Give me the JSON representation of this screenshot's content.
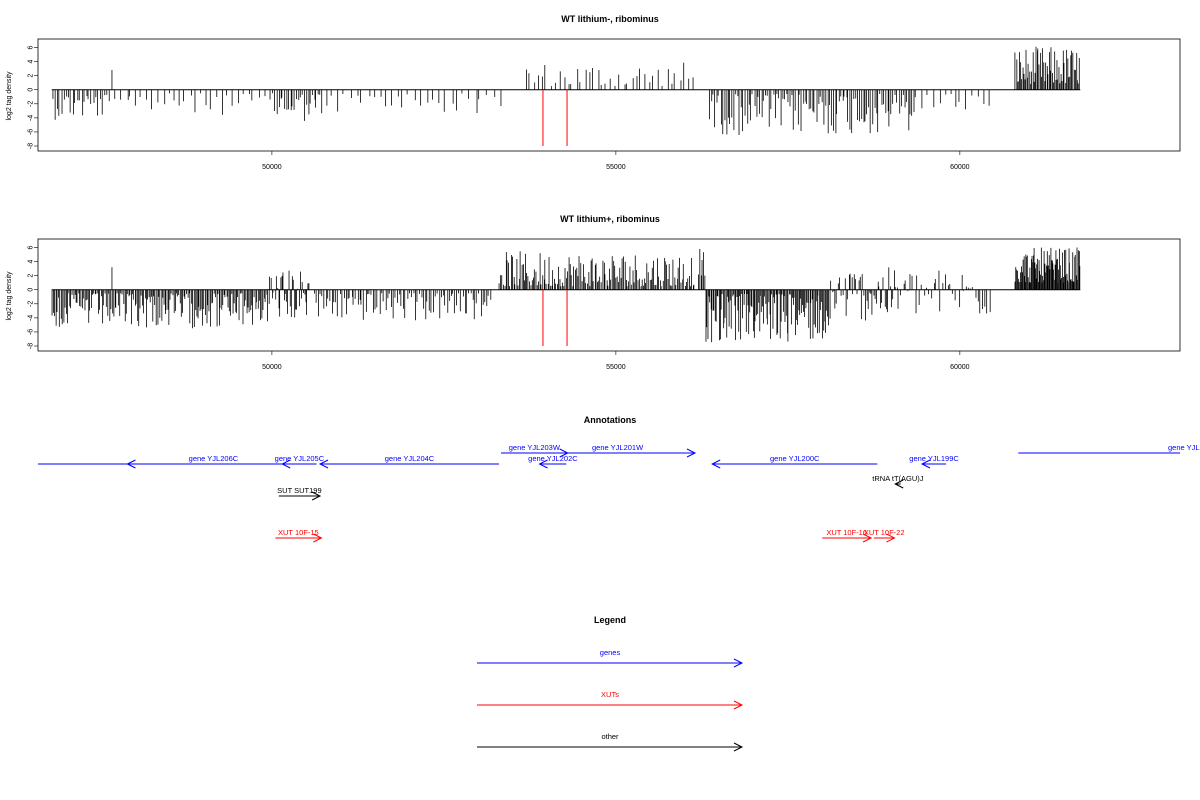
{
  "chart_data": [
    {
      "type": "bar",
      "title": "WT lithium-, ribominus",
      "ylabel": "log2 tag density",
      "xlabel": "",
      "xlim": [
        46600,
        63200
      ],
      "ylim": [
        -8,
        6.5
      ],
      "x_ticks": [
        "50000",
        "55000",
        "60000"
      ],
      "y_ticks": [
        "6",
        "4",
        "2",
        "0",
        "-2",
        "-4",
        "-6",
        "-8"
      ],
      "series_color": "#000000",
      "highlight_color": "#ff0000",
      "highlight_x": [
        53940,
        54290
      ],
      "highlight_value": -8,
      "segments": [
        {
          "from": 46800,
          "to": 47650,
          "n": 26,
          "min": -4.3,
          "max": -0.6
        },
        {
          "from": 47650,
          "to": 47700,
          "n": 1,
          "min": 2.8,
          "max": 2.8
        },
        {
          "from": 47700,
          "to": 50000,
          "n": 30,
          "min": -3.6,
          "max": -0.5
        },
        {
          "from": 50000,
          "to": 50750,
          "n": 26,
          "min": -4.6,
          "max": -0.5
        },
        {
          "from": 50750,
          "to": 53350,
          "n": 30,
          "min": -3.4,
          "max": -0.5
        },
        {
          "from": 53650,
          "to": 56150,
          "n": 40,
          "min": 0.5,
          "max": 4.0
        },
        {
          "from": 56350,
          "to": 59350,
          "n": 110,
          "min": -6.5,
          "max": -0.6
        },
        {
          "from": 59350,
          "to": 60450,
          "n": 14,
          "min": -3.2,
          "max": -0.5
        },
        {
          "from": 60800,
          "to": 61750,
          "n": 60,
          "min": 0.8,
          "max": 6.2
        }
      ]
    },
    {
      "type": "bar",
      "title": "WT lithium+, ribominus",
      "ylabel": "log2 tag density",
      "xlabel": "",
      "xlim": [
        46600,
        63200
      ],
      "ylim": [
        -8,
        6.5
      ],
      "x_ticks": [
        "50000",
        "55000",
        "60000"
      ],
      "y_ticks": [
        "6",
        "4",
        "2",
        "0",
        "-2",
        "-4",
        "-6",
        "-8"
      ],
      "series_color": "#000000",
      "highlight_color": "#ff0000",
      "highlight_x": [
        53940,
        54290
      ],
      "highlight_value": -8,
      "segments": [
        {
          "from": 46800,
          "to": 49900,
          "n": 170,
          "min": -5.5,
          "max": -0.5
        },
        {
          "from": 47650,
          "to": 47700,
          "n": 1,
          "min": 3.2,
          "max": 3.2
        },
        {
          "from": 49900,
          "to": 50550,
          "n": 40,
          "min": -4.5,
          "max": 3.0
        },
        {
          "from": 50600,
          "to": 53200,
          "n": 90,
          "min": -4.5,
          "max": -0.5
        },
        {
          "from": 53300,
          "to": 56150,
          "n": 150,
          "min": 0.5,
          "max": 5.5
        },
        {
          "from": 56200,
          "to": 56300,
          "n": 6,
          "min": 2.0,
          "max": 6.0
        },
        {
          "from": 56300,
          "to": 58100,
          "n": 120,
          "min": -7.5,
          "max": -0.6
        },
        {
          "from": 58100,
          "to": 59100,
          "n": 50,
          "min": -4.5,
          "max": 3.2
        },
        {
          "from": 59100,
          "to": 60450,
          "n": 40,
          "min": -4.0,
          "max": 3.0
        },
        {
          "from": 60800,
          "to": 61750,
          "n": 90,
          "min": 1.0,
          "max": 6.0
        }
      ]
    }
  ],
  "annotations": {
    "title": "Annotations",
    "items": [
      {
        "label": "",
        "x1": 46600,
        "x2": 48000,
        "row": 1,
        "dir": "none",
        "color": "#0000ff"
      },
      {
        "label": "gene YJL206C",
        "x1": 47900,
        "x2": 50400,
        "row": 1,
        "dir": "left",
        "color": "#0000ff"
      },
      {
        "label": "gene YJL205C",
        "x1": 50150,
        "x2": 50650,
        "row": 1,
        "dir": "left",
        "color": "#0000ff"
      },
      {
        "label": "gene YJL204C",
        "x1": 50700,
        "x2": 53300,
        "row": 1,
        "dir": "left",
        "color": "#0000ff"
      },
      {
        "label": "gene YJL203W",
        "x1": 53330,
        "x2": 54300,
        "row": 0,
        "dir": "right",
        "color": "#0000ff"
      },
      {
        "label": "gene YJL202C",
        "x1": 53890,
        "x2": 54280,
        "row": 1,
        "dir": "left",
        "color": "#0000ff"
      },
      {
        "label": "gene YJL201W",
        "x1": 53900,
        "x2": 56150,
        "row": 0,
        "dir": "right",
        "color": "#0000ff"
      },
      {
        "label": "gene YJL200C",
        "x1": 56400,
        "x2": 58800,
        "row": 1,
        "dir": "left",
        "color": "#0000ff"
      },
      {
        "label": "gene YJL199C",
        "x1": 59450,
        "x2": 59800,
        "row": 1,
        "dir": "left",
        "color": "#0000ff"
      },
      {
        "label": "gene YJL",
        "x1": 60850,
        "x2": 63200,
        "row": 0,
        "dir": "none",
        "color": "#0000ff"
      },
      {
        "label": "tRNA tT(AGU)J",
        "x1": 59060,
        "x2": 59140,
        "row": 2,
        "dir": "left",
        "color": "#000000"
      },
      {
        "label": "SUT SUT199",
        "x1": 50100,
        "x2": 50700,
        "row": 3,
        "dir": "right",
        "color": "#000000"
      },
      {
        "label": "XUT 10F-15",
        "x1": 50050,
        "x2": 50720,
        "row": 4,
        "dir": "right",
        "color": "#ff0000"
      },
      {
        "label": "XUT 10F-16",
        "x1": 58000,
        "x2": 58710,
        "row": 4,
        "dir": "right",
        "color": "#ff0000"
      },
      {
        "label": "XUT 10F-22",
        "x1": 58750,
        "x2": 59050,
        "row": 4,
        "dir": "right",
        "color": "#ff0000"
      }
    ]
  },
  "legend": {
    "title": "Legend",
    "items": [
      {
        "label": "genes",
        "color": "#0000ff"
      },
      {
        "label": "XUTs",
        "color": "#ff0000"
      },
      {
        "label": "other",
        "color": "#000000"
      }
    ]
  }
}
